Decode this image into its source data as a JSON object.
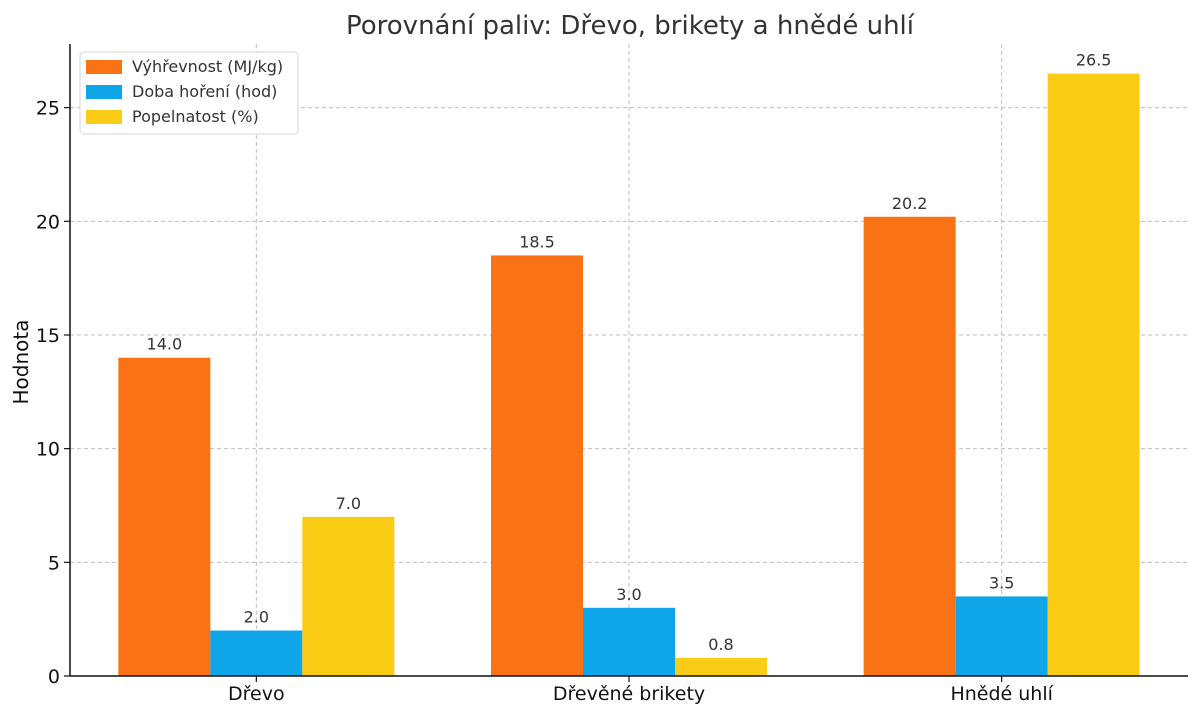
{
  "chart_data": {
    "type": "bar",
    "title": "Porovnání paliv: Dřevo, brikety a hnědé uhlí",
    "xlabel": "",
    "ylabel": "Hodnota",
    "categories": [
      "Dřevo",
      "Dřevěné brikety",
      "Hnědé uhlí"
    ],
    "series": [
      {
        "name": "Výhřevnost (MJ/kg)",
        "values": [
          14.0,
          18.5,
          20.2
        ],
        "color": "#f97316"
      },
      {
        "name": "Doba hoření (hod)",
        "values": [
          2.0,
          3.0,
          3.5
        ],
        "color": "#0ea5e9"
      },
      {
        "name": "Popelnatost (%)",
        "values": [
          7.0,
          0.8,
          26.5
        ],
        "color": "#facc15"
      }
    ],
    "ylim": [
      0,
      27.8
    ],
    "yticks": [
      0,
      5,
      10,
      15,
      20,
      25
    ],
    "grid": true,
    "legend_position": "top-left"
  }
}
